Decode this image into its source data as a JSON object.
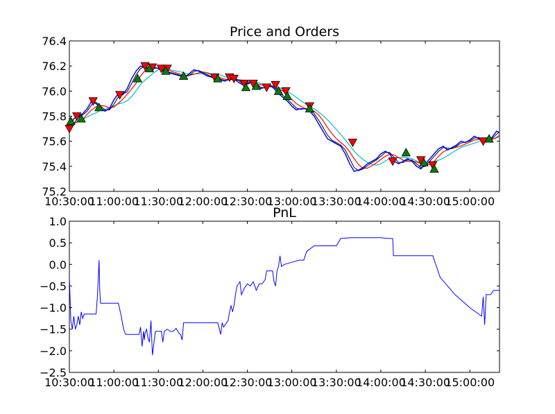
{
  "chart_data": [
    {
      "type": "line",
      "title": "Price and Orders",
      "xlabel": "",
      "ylabel": "",
      "x_ticks": [
        "10:30:00",
        "11:00:00",
        "11:30:00",
        "12:00:00",
        "12:30:00",
        "13:00:00",
        "13:30:00",
        "14:00:00",
        "14:30:00",
        "15:00:00"
      ],
      "x_range_minutes": [
        0,
        290
      ],
      "ylim": [
        75.2,
        76.4
      ],
      "y_ticks": [
        "75.2",
        "75.4",
        "75.6",
        "75.8",
        "76.0",
        "76.2",
        "76.4"
      ],
      "grid": false,
      "colors": {
        "price": "#0000ff",
        "ma_fast": "#000000",
        "ma_mid": "#ff0000",
        "ma_slow": "#00bfbf",
        "sell_marker": "#ff0000",
        "buy_marker": "#008000"
      },
      "series": [
        {
          "kind": "price",
          "x_minutes": [
            0,
            3,
            6,
            9,
            12,
            15,
            18,
            21,
            24,
            27,
            30,
            33,
            36,
            39,
            42,
            45,
            48,
            51,
            54,
            57,
            60,
            63,
            66,
            69,
            72,
            75,
            78,
            81,
            84,
            87,
            90,
            93,
            96,
            99,
            102,
            105,
            108,
            111,
            114,
            117,
            120,
            123,
            126,
            129,
            132,
            135,
            138,
            141,
            144,
            147,
            150,
            153,
            156,
            159,
            162,
            165,
            168,
            171,
            174,
            177,
            180,
            183,
            186,
            189,
            192,
            195,
            198,
            201,
            204,
            207,
            210,
            213,
            216,
            219,
            222,
            225,
            228,
            231,
            234,
            237,
            240,
            243,
            246,
            249,
            252,
            255,
            258,
            261,
            264,
            267,
            270,
            273,
            276,
            279,
            282,
            285,
            288,
            290
          ],
          "values": [
            75.7,
            75.78,
            75.8,
            75.82,
            75.86,
            75.92,
            75.9,
            75.86,
            75.84,
            75.86,
            75.93,
            75.98,
            75.97,
            76.02,
            76.1,
            76.16,
            76.2,
            76.19,
            76.17,
            76.19,
            76.18,
            76.16,
            76.15,
            76.14,
            76.13,
            76.12,
            76.11,
            76.14,
            76.17,
            76.16,
            76.14,
            76.12,
            76.11,
            76.1,
            76.09,
            76.08,
            76.1,
            76.1,
            76.07,
            76.05,
            76.06,
            76.08,
            76.04,
            76.02,
            76.03,
            76.05,
            76.02,
            75.98,
            75.95,
            75.92,
            75.88,
            75.85,
            75.86,
            75.86,
            75.84,
            75.8,
            75.74,
            75.68,
            75.62,
            75.6,
            75.58,
            75.56,
            75.5,
            75.42,
            75.36,
            75.37,
            75.39,
            75.42,
            75.44,
            75.46,
            75.5,
            75.52,
            75.5,
            75.44,
            75.42,
            75.44,
            75.46,
            75.44,
            75.4,
            75.38,
            75.42,
            75.46,
            75.5,
            75.54,
            75.56,
            75.53,
            75.55,
            75.57,
            75.6,
            75.59,
            75.61,
            75.64,
            75.62,
            75.6,
            75.61,
            75.63,
            75.68,
            75.67
          ]
        }
      ],
      "markers": {
        "sell": [
          {
            "x_minutes": 0,
            "value": 75.7
          },
          {
            "x_minutes": 5,
            "value": 75.8
          },
          {
            "x_minutes": 16,
            "value": 75.92
          },
          {
            "x_minutes": 34,
            "value": 75.97
          },
          {
            "x_minutes": 51,
            "value": 76.2
          },
          {
            "x_minutes": 56,
            "value": 76.19
          },
          {
            "x_minutes": 62,
            "value": 76.18
          },
          {
            "x_minutes": 66,
            "value": 76.18
          },
          {
            "x_minutes": 98,
            "value": 76.11
          },
          {
            "x_minutes": 108,
            "value": 76.11
          },
          {
            "x_minutes": 111,
            "value": 76.1
          },
          {
            "x_minutes": 118,
            "value": 76.06
          },
          {
            "x_minutes": 124,
            "value": 76.06
          },
          {
            "x_minutes": 133,
            "value": 76.03
          },
          {
            "x_minutes": 139,
            "value": 76.05
          },
          {
            "x_minutes": 146,
            "value": 76.0
          },
          {
            "x_minutes": 162,
            "value": 75.88
          },
          {
            "x_minutes": 191,
            "value": 75.59
          },
          {
            "x_minutes": 218,
            "value": 75.44
          },
          {
            "x_minutes": 237,
            "value": 75.45
          },
          {
            "x_minutes": 245,
            "value": 75.41
          },
          {
            "x_minutes": 279,
            "value": 75.6
          }
        ],
        "buy": [
          {
            "x_minutes": 1,
            "value": 75.76
          },
          {
            "x_minutes": 8,
            "value": 75.78
          },
          {
            "x_minutes": 20,
            "value": 75.87
          },
          {
            "x_minutes": 46,
            "value": 76.1
          },
          {
            "x_minutes": 54,
            "value": 76.18
          },
          {
            "x_minutes": 65,
            "value": 76.16
          },
          {
            "x_minutes": 77,
            "value": 76.12
          },
          {
            "x_minutes": 100,
            "value": 76.1
          },
          {
            "x_minutes": 119,
            "value": 76.03
          },
          {
            "x_minutes": 126,
            "value": 76.04
          },
          {
            "x_minutes": 141,
            "value": 76.0
          },
          {
            "x_minutes": 147,
            "value": 75.96
          },
          {
            "x_minutes": 162,
            "value": 75.86
          },
          {
            "x_minutes": 227,
            "value": 75.51
          },
          {
            "x_minutes": 239,
            "value": 75.43
          },
          {
            "x_minutes": 246,
            "value": 75.38
          },
          {
            "x_minutes": 283,
            "value": 75.62
          }
        ]
      }
    },
    {
      "type": "line",
      "title": "PnL",
      "xlabel": "",
      "ylabel": "",
      "x_ticks": [
        "10:30:00",
        "11:00:00",
        "11:30:00",
        "12:00:00",
        "12:30:00",
        "13:00:00",
        "13:30:00",
        "14:00:00",
        "14:30:00",
        "15:00:00"
      ],
      "x_range_minutes": [
        0,
        290
      ],
      "ylim": [
        -2.5,
        1.0
      ],
      "y_ticks": [
        "−2.5",
        "−2.0",
        "−1.5",
        "−1.0",
        "−0.5",
        "0.0",
        "0.5",
        "1.0"
      ],
      "grid": false,
      "colors": {
        "pnl": "#0000ff"
      },
      "series": [
        {
          "kind": "pnl",
          "x_minutes": [
            0,
            1,
            2,
            3,
            4,
            5,
            6,
            7,
            8,
            9,
            10,
            12,
            15,
            18,
            19,
            20,
            20.5,
            21,
            22,
            23,
            24,
            25,
            27,
            30,
            33,
            35,
            36,
            37,
            38,
            42,
            45,
            47,
            48,
            49,
            50,
            50.5,
            51,
            52,
            53,
            54,
            55,
            56,
            58,
            60,
            62,
            63,
            64,
            66,
            68,
            70,
            72,
            74,
            75,
            76,
            77,
            80,
            90,
            100,
            101,
            102,
            103,
            104,
            106,
            107,
            108,
            109,
            110,
            111,
            112,
            113,
            115,
            116,
            118,
            120,
            122,
            124,
            126,
            128,
            130,
            132,
            133,
            134,
            135,
            136,
            137,
            138,
            139,
            140,
            141,
            142,
            143,
            145,
            150,
            155,
            158,
            160,
            165,
            170,
            175,
            180,
            183,
            190,
            200,
            205,
            210,
            215,
            218,
            218.5,
            219,
            220,
            221,
            222,
            223,
            224,
            225,
            228,
            230,
            240,
            244,
            245,
            250,
            260,
            270,
            278,
            279,
            280,
            281,
            282,
            283,
            284,
            286,
            290
          ],
          "values": [
            -0.3,
            -1.3,
            -1.5,
            -1.2,
            -1.5,
            -1.4,
            -1.2,
            -1.4,
            -1.1,
            -1.25,
            -1.15,
            -1.15,
            -1.15,
            -1.15,
            -0.7,
            0.1,
            -0.6,
            -0.9,
            -0.9,
            -0.9,
            -0.9,
            -0.9,
            -0.9,
            -0.9,
            -0.9,
            -1.2,
            -1.4,
            -1.55,
            -1.62,
            -1.62,
            -1.62,
            -1.62,
            -1.45,
            -1.9,
            -1.55,
            -1.75,
            -1.6,
            -1.5,
            -1.7,
            -1.8,
            -1.3,
            -2.1,
            -1.55,
            -1.55,
            -1.55,
            -1.8,
            -1.55,
            -1.5,
            -1.55,
            -1.55,
            -1.48,
            -1.6,
            -1.62,
            -1.75,
            -1.35,
            -1.35,
            -1.35,
            -1.35,
            -1.48,
            -1.62,
            -1.35,
            -1.45,
            -1.35,
            -1.3,
            -1.1,
            -0.95,
            -1.1,
            -0.95,
            -0.7,
            -0.5,
            -0.4,
            -0.7,
            -0.55,
            -0.45,
            -0.5,
            -0.4,
            -0.6,
            -0.45,
            -0.45,
            -0.35,
            -0.15,
            -0.15,
            -0.15,
            -0.15,
            -0.15,
            -0.4,
            -0.5,
            -0.15,
            -0.05,
            0.2,
            -0.05,
            0.0,
            0.05,
            0.1,
            0.1,
            0.3,
            0.43,
            0.43,
            0.43,
            0.43,
            0.6,
            0.62,
            0.62,
            0.62,
            0.62,
            0.6,
            0.6,
            0.2,
            0.2,
            0.2,
            0.2,
            0.2,
            0.2,
            0.2,
            0.2,
            0.2,
            0.2,
            0.2,
            0.2,
            0.2,
            -0.3,
            -0.7,
            -1.0,
            -1.2,
            -0.75,
            -1.4,
            -0.7,
            -0.7,
            -0.7,
            -0.7,
            -0.6,
            -0.6
          ]
        }
      ]
    }
  ]
}
